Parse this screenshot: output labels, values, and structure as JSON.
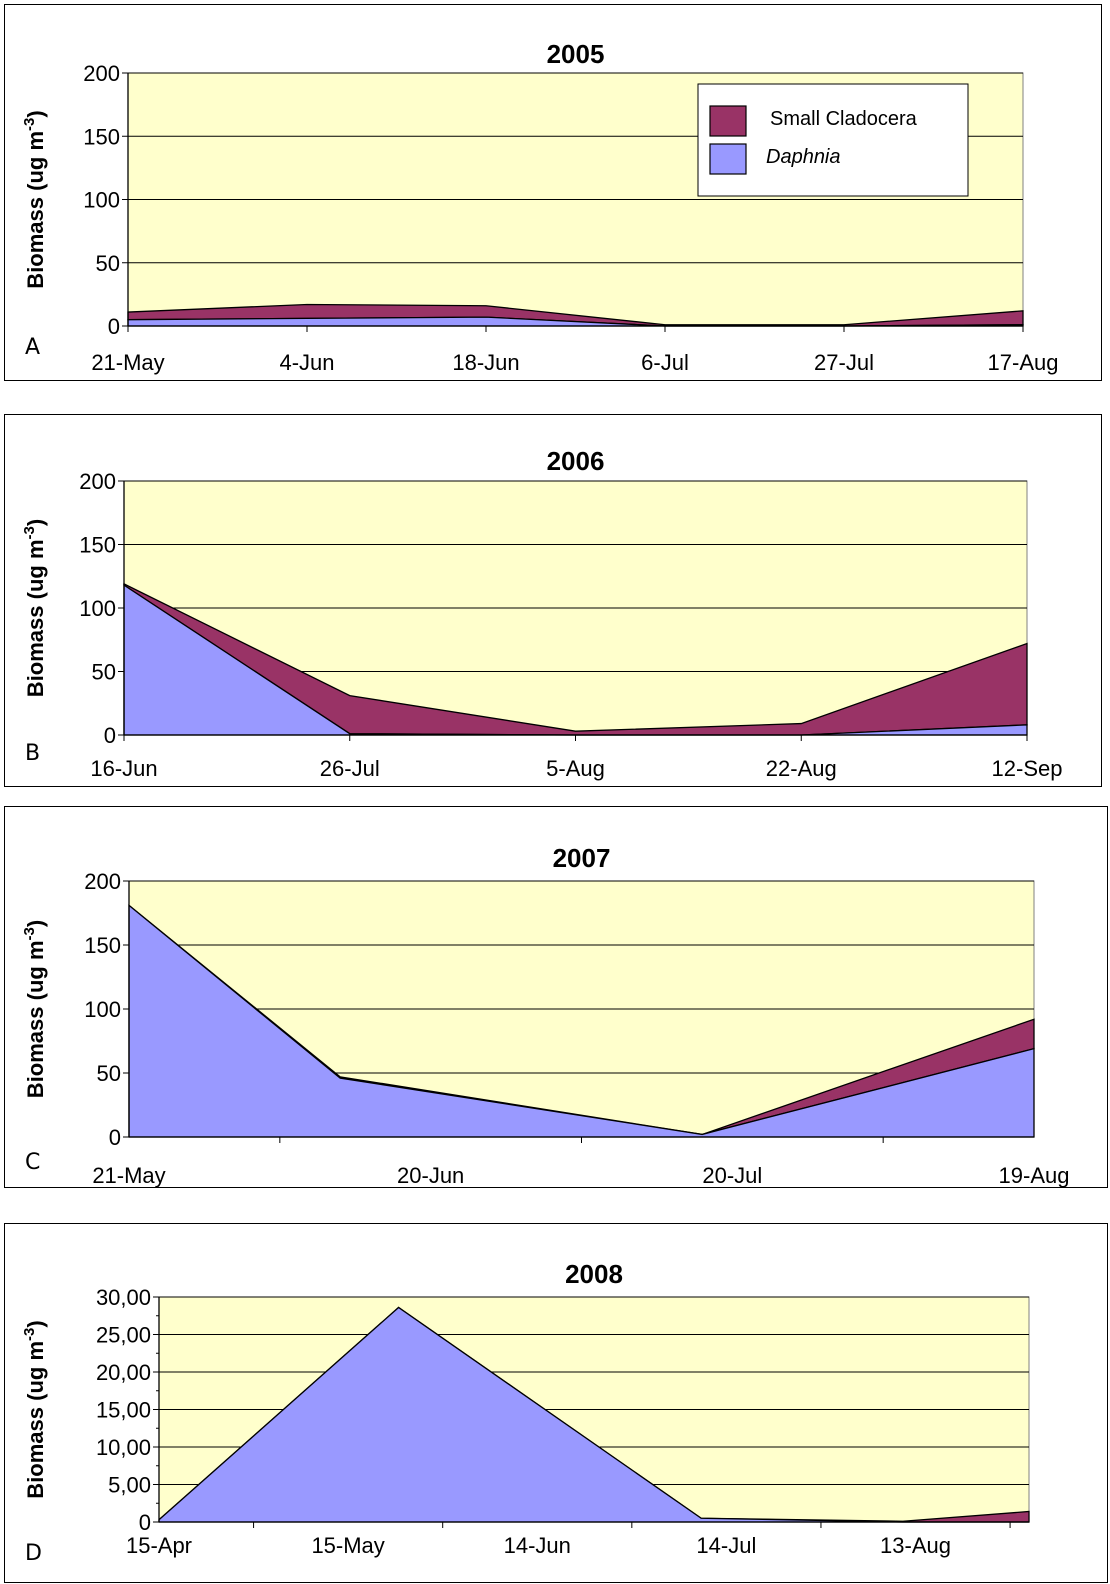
{
  "colors": {
    "plot_bg": "#ffffcc",
    "daphnia": "#9999ff",
    "small_cladocera": "#993366",
    "grid": "#000000"
  },
  "legend": {
    "items": [
      {
        "label": "Small Cladocera",
        "italic": false,
        "color": "#993366"
      },
      {
        "label": "Daphnia",
        "italic": true,
        "color": "#9999ff"
      }
    ],
    "placement": "top-right"
  },
  "chart_data": [
    {
      "type": "area",
      "stacked": true,
      "panel_letter": "A",
      "title": "2005",
      "ylabel": "Biomass (ug m-3)",
      "ylabel_main": "Biomass (ug m",
      "ylabel_sup": "-3",
      "ylabel_end": ")",
      "ylim": [
        0,
        200
      ],
      "yticks": [
        "0",
        "50",
        "100",
        "150",
        "200"
      ],
      "ytick_values": [
        0,
        50,
        100,
        150,
        200
      ],
      "categories": [
        "21-May",
        "4-Jun",
        "18-Jun",
        "6-Jul",
        "27-Jul",
        "17-Aug"
      ],
      "series": [
        {
          "name": "Daphnia",
          "values": [
            5,
            6,
            7,
            0,
            0,
            1
          ]
        },
        {
          "name": "Small Cladocera",
          "values": [
            6,
            11,
            9,
            1,
            1,
            11
          ]
        }
      ],
      "grid": true,
      "legend": true
    },
    {
      "type": "area",
      "stacked": true,
      "panel_letter": "B",
      "title": "2006",
      "ylabel": "Biomass (ug m-3)",
      "ylabel_main": "Biomass (ug m",
      "ylabel_sup": "-3",
      "ylabel_end": ")",
      "ylim": [
        0,
        200
      ],
      "yticks": [
        "0",
        "50",
        "100",
        "150",
        "200"
      ],
      "ytick_values": [
        0,
        50,
        100,
        150,
        200
      ],
      "categories": [
        "16-Jun",
        "26-Jul",
        "5-Aug",
        "22-Aug",
        "12-Sep"
      ],
      "series": [
        {
          "name": "Daphnia",
          "values": [
            118,
            1,
            0,
            0,
            8
          ]
        },
        {
          "name": "Small Cladocera",
          "values": [
            1,
            30,
            3,
            9,
            64
          ]
        }
      ],
      "grid": true,
      "legend": false
    },
    {
      "type": "area",
      "stacked": true,
      "panel_letter": "C",
      "title": "2007",
      "ylabel": "Biomass (ug m-3)",
      "ylabel_main": "Biomass (ug m",
      "ylabel_sup": "-3",
      "ylabel_end": ")",
      "ylim": [
        0,
        200
      ],
      "yticks": [
        "0",
        "50",
        "100",
        "150",
        "200"
      ],
      "ytick_values": [
        0,
        50,
        100,
        150,
        200
      ],
      "categories": [
        "21-May",
        "20-Jun",
        "20-Jul",
        "19-Aug"
      ],
      "category_dates": [
        "05-21",
        "06-20",
        "07-20",
        "08-19"
      ],
      "x_dates": [
        "05-21",
        "06-11",
        "07-17",
        "08-19"
      ],
      "series": [
        {
          "name": "Daphnia",
          "values": [
            181,
            46,
            2,
            69
          ]
        },
        {
          "name": "Small Cladocera",
          "values": [
            0,
            1,
            0,
            23
          ]
        }
      ],
      "grid": true,
      "legend": false
    },
    {
      "type": "area",
      "stacked": true,
      "panel_letter": "D",
      "title": "2008",
      "ylabel": "Biomass (ug m-3)",
      "ylabel_main": "Biomass (ug m",
      "ylabel_sup": "-3",
      "ylabel_end": ")",
      "ylim": [
        0,
        30
      ],
      "yticks": [
        "0",
        "5,00",
        "10,00",
        "15,00",
        "20,00",
        "25,00",
        "30,00"
      ],
      "ytick_values": [
        0,
        5,
        10,
        15,
        20,
        25,
        30
      ],
      "categories": [
        "15-Apr",
        "15-May",
        "14-Jun",
        "14-Jul",
        "13-Aug"
      ],
      "category_dates": [
        "04-15",
        "05-15",
        "06-14",
        "07-14",
        "08-13"
      ],
      "x_dates": [
        "04-15",
        "05-23",
        "07-10",
        "08-11",
        "08-31"
      ],
      "series": [
        {
          "name": "Daphnia",
          "values": [
            0.3,
            28.6,
            0.5,
            0,
            0
          ]
        },
        {
          "name": "Small Cladocera",
          "values": [
            0,
            0,
            0,
            0.1,
            1.4
          ]
        }
      ],
      "grid": true,
      "legend": false
    }
  ]
}
